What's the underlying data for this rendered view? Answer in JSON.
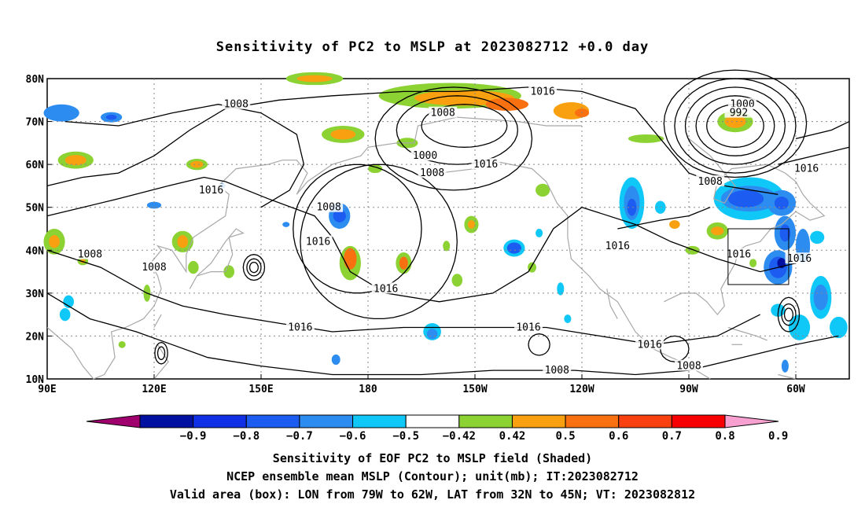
{
  "title": "Sensitivity of PC2 to MSLP at 2023082712 +0.0 day",
  "captions": {
    "line1": "Sensitivity of EOF PC2 to MSLP field (Shaded)",
    "line2": "NCEP ensemble mean MSLP (Contour); unit(mb); IT:2023082712",
    "line3": "Valid area (box): LON from 79W to 62W, LAT from 32N to 45N; VT: 2023082812"
  },
  "map": {
    "lon_labels": [
      "90E",
      "120E",
      "150E",
      "180",
      "150W",
      "120W",
      "90W",
      "60W"
    ],
    "lon_values": [
      90,
      120,
      150,
      180,
      210,
      240,
      270,
      300
    ],
    "lat_labels": [
      "10N",
      "20N",
      "30N",
      "40N",
      "50N",
      "60N",
      "70N",
      "80N"
    ],
    "lat_values": [
      10,
      20,
      30,
      40,
      50,
      60,
      70,
      80
    ],
    "lon_range": [
      90,
      315
    ],
    "lat_range": [
      10,
      80
    ],
    "valid_box": {
      "lon_min": 281,
      "lon_max": 298,
      "lat_min": 32,
      "lat_max": 45
    },
    "contour_labels": [
      {
        "text": "1016",
        "lon": 229,
        "lat": 77
      },
      {
        "text": "1008",
        "lon": 143,
        "lat": 74
      },
      {
        "text": "1008",
        "lon": 201,
        "lat": 72
      },
      {
        "text": "1000",
        "lon": 285,
        "lat": 74
      },
      {
        "text": "992",
        "lon": 284,
        "lat": 72
      },
      {
        "text": "1000",
        "lon": 196,
        "lat": 62
      },
      {
        "text": "1008",
        "lon": 198,
        "lat": 58
      },
      {
        "text": "1016",
        "lon": 213,
        "lat": 60
      },
      {
        "text": "1016",
        "lon": 136,
        "lat": 54
      },
      {
        "text": "1016",
        "lon": 303,
        "lat": 59
      },
      {
        "text": "1008",
        "lon": 276,
        "lat": 56
      },
      {
        "text": "1008",
        "lon": 169,
        "lat": 50
      },
      {
        "text": "1016",
        "lon": 166,
        "lat": 42
      },
      {
        "text": "1016",
        "lon": 250,
        "lat": 41
      },
      {
        "text": "1016",
        "lon": 284,
        "lat": 39
      },
      {
        "text": "1016",
        "lon": 301,
        "lat": 38
      },
      {
        "text": "1008",
        "lon": 102,
        "lat": 39
      },
      {
        "text": "1008",
        "lon": 120,
        "lat": 36
      },
      {
        "text": "1016",
        "lon": 185,
        "lat": 31
      },
      {
        "text": "1016",
        "lon": 161,
        "lat": 22
      },
      {
        "text": "1016",
        "lon": 225,
        "lat": 22
      },
      {
        "text": "1016",
        "lon": 259,
        "lat": 18
      },
      {
        "text": "1008",
        "lon": 233,
        "lat": 12
      },
      {
        "text": "1008",
        "lon": 270,
        "lat": 13
      }
    ]
  },
  "colorbar": {
    "labels": [
      "−0.9",
      "−0.8",
      "−0.7",
      "−0.6",
      "−0.5",
      "−0.42",
      "0.42",
      "0.5",
      "0.6",
      "0.7",
      "0.8",
      "0.9"
    ],
    "colors": [
      "#a0006e",
      "#0010a0",
      "#1030e6",
      "#1c5cf0",
      "#2c8cf0",
      "#10c8f8",
      "#ffffff",
      "#8cd232",
      "#f8a010",
      "#f87010",
      "#f84010",
      "#f80000",
      "#f8a0d0"
    ]
  }
}
